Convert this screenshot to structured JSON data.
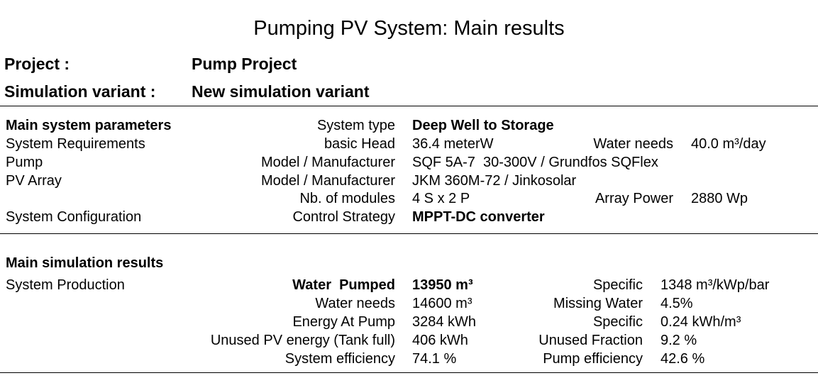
{
  "title": "Pumping PV System: Main results",
  "project": {
    "label": "Project :",
    "value": "Pump Project"
  },
  "variant": {
    "label": "Simulation variant :",
    "value": "New simulation variant"
  },
  "params": {
    "header": "Main system parameters",
    "rows": [
      {
        "left": "",
        "label": "System type",
        "value": "Deep Well to Storage",
        "label2": "",
        "value2": ""
      },
      {
        "left": "System Requirements",
        "label": "basic Head",
        "value": "36.4 meterW",
        "label2": "Water needs",
        "value2": "40.0 m³/day"
      },
      {
        "left": "Pump",
        "label": "Model / Manufacturer",
        "value": "SQF 5A-7  30-300V / Grundfos SQFlex",
        "label2": "",
        "value2": ""
      },
      {
        "left": "PV Array",
        "label": "Model / Manufacturer",
        "value": "JKM 360M-72 / Jinkosolar",
        "label2": "",
        "value2": ""
      },
      {
        "left": "",
        "label": "Nb. of modules",
        "value": "4 S x 2 P",
        "label2": "Array Power",
        "value2": "2880 Wp"
      },
      {
        "left": "System Configuration",
        "label": "Control Strategy",
        "value": "MPPT-DC converter",
        "label2": "",
        "value2": ""
      }
    ]
  },
  "results": {
    "header": "Main simulation results",
    "left": "System Production",
    "rows": [
      {
        "label": "Water  Pumped",
        "value": "13950 m³",
        "label2": "Specific",
        "value2": "1348 m³/kWp/bar"
      },
      {
        "label": "Water needs",
        "value": "14600 m³",
        "label2": "Missing Water",
        "value2": "4.5%"
      },
      {
        "label": "Energy At Pump",
        "value": "3284 kWh",
        "label2": "Specific",
        "value2": "0.24 kWh/m³"
      },
      {
        "label": "Unused PV energy (Tank full)",
        "value": "406 kWh",
        "label2": "Unused Fraction",
        "value2": "9.2 %"
      },
      {
        "label": "System efficiency",
        "value": "74.1 %",
        "label2": "Pump efficiency",
        "value2": "42.6 %"
      }
    ]
  }
}
